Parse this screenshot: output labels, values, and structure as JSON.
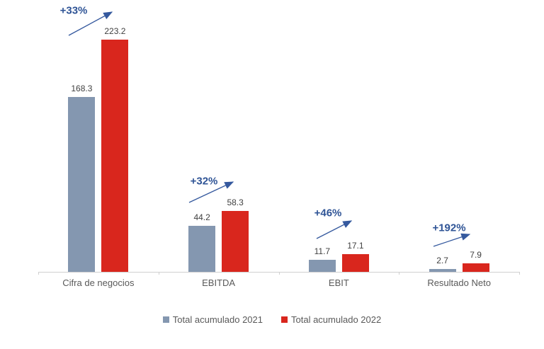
{
  "chart_data": {
    "type": "bar",
    "categories": [
      "Cifra de negocios",
      "EBITDA",
      "EBIT",
      "Resultado Neto"
    ],
    "series": [
      {
        "name": "Total acumulado 2021",
        "color": "#8497B0",
        "values": [
          168.3,
          44.2,
          11.7,
          2.7
        ]
      },
      {
        "name": "Total acumulado 2022",
        "color": "#D9261D",
        "values": [
          223.2,
          58.3,
          17.1,
          7.9
        ]
      }
    ],
    "growth_labels": [
      "+33%",
      "+32%",
      "+46%",
      "+192%"
    ],
    "title": "",
    "xlabel": "",
    "ylabel": "",
    "ylim": [
      0,
      260
    ],
    "grid": false,
    "legend_position": "bottom",
    "value_labels_shown": true
  },
  "legend": {
    "items": [
      {
        "label": "Total acumulado 2021",
        "color": "#8497B0"
      },
      {
        "label": "Total acumulado 2022",
        "color": "#D9261D"
      }
    ]
  },
  "colors": {
    "bar_2021": "#8497B0",
    "bar_2022": "#D9261D",
    "growth_text": "#2F5496",
    "arrow": "#35599E",
    "value_label": "#404040",
    "axis_label": "#595959",
    "axis_line": "#CFCFCF",
    "background": "#FFFFFF"
  }
}
